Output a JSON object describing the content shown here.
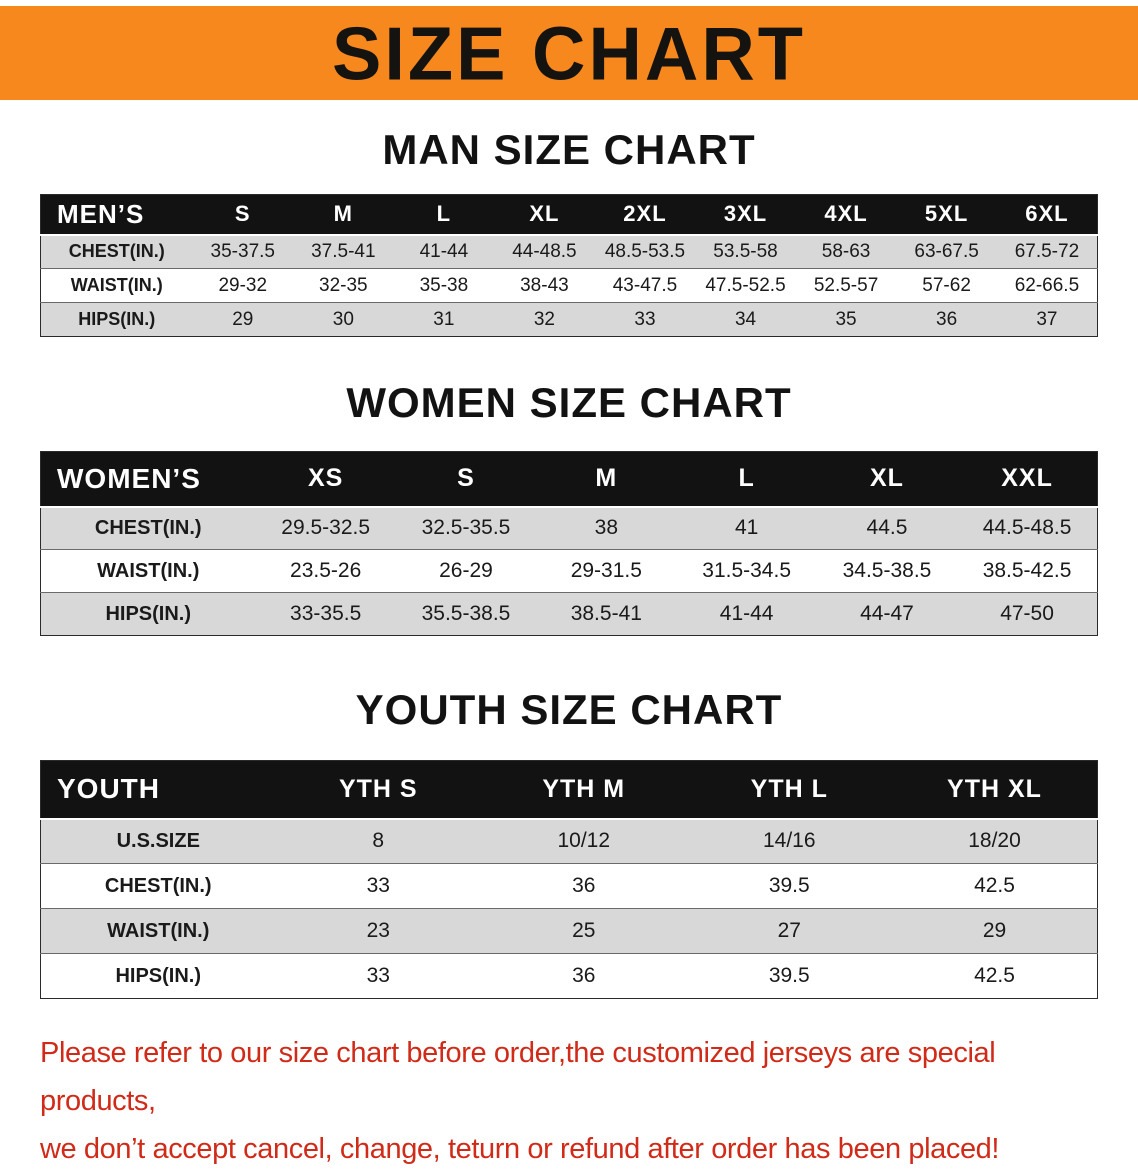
{
  "colors": {
    "accent": "#f6881e",
    "header-bg": "#121212",
    "row-alt": "#d8d8d8",
    "disclaimer": "#d02a18",
    "text": "#111111"
  },
  "banner": {
    "title": "SIZE CHART"
  },
  "sections": [
    {
      "heading": "MAN SIZE CHART",
      "table": {
        "header": [
          "MEN’S",
          "S",
          "M",
          "L",
          "XL",
          "2XL",
          "3XL",
          "4XL",
          "5XL",
          "6XL"
        ],
        "rows": [
          [
            "CHEST(IN.)",
            "35-37.5",
            "37.5-41",
            "41-44",
            "44-48.5",
            "48.5-53.5",
            "53.5-58",
            "58-63",
            "63-67.5",
            "67.5-72"
          ],
          [
            "WAIST(IN.)",
            "29-32",
            "32-35",
            "35-38",
            "38-43",
            "43-47.5",
            "47.5-52.5",
            "52.5-57",
            "57-62",
            "62-66.5"
          ],
          [
            "HIPS(IN.)",
            "29",
            "30",
            "31",
            "32",
            "33",
            "34",
            "35",
            "36",
            "37"
          ]
        ]
      }
    },
    {
      "heading": "WOMEN SIZE CHART",
      "table": {
        "header": [
          "WOMEN’S",
          "XS",
          "S",
          "M",
          "L",
          "XL",
          "XXL"
        ],
        "rows": [
          [
            "CHEST(IN.)",
            "29.5-32.5",
            "32.5-35.5",
            "38",
            "41",
            "44.5",
            "44.5-48.5"
          ],
          [
            "WAIST(IN.)",
            "23.5-26",
            "26-29",
            "29-31.5",
            "31.5-34.5",
            "34.5-38.5",
            "38.5-42.5"
          ],
          [
            "HIPS(IN.)",
            "33-35.5",
            "35.5-38.5",
            "38.5-41",
            "41-44",
            "44-47",
            "47-50"
          ]
        ]
      }
    },
    {
      "heading": "YOUTH SIZE CHART",
      "table": {
        "header": [
          "YOUTH",
          "YTH S",
          "YTH M",
          "YTH L",
          "YTH XL"
        ],
        "rows": [
          [
            "U.S.SIZE",
            "8",
            "10/12",
            "14/16",
            "18/20"
          ],
          [
            "CHEST(IN.)",
            "33",
            "36",
            "39.5",
            "42.5"
          ],
          [
            "WAIST(IN.)",
            "23",
            "25",
            "27",
            "29"
          ],
          [
            "HIPS(IN.)",
            "33",
            "36",
            "39.5",
            "42.5"
          ]
        ]
      }
    }
  ],
  "disclaimer": {
    "line1": "Please refer to our size chart before order,the customized jerseys are special products,",
    "line2": "we don’t accept cancel, change, teturn or refund after order has been placed!"
  }
}
